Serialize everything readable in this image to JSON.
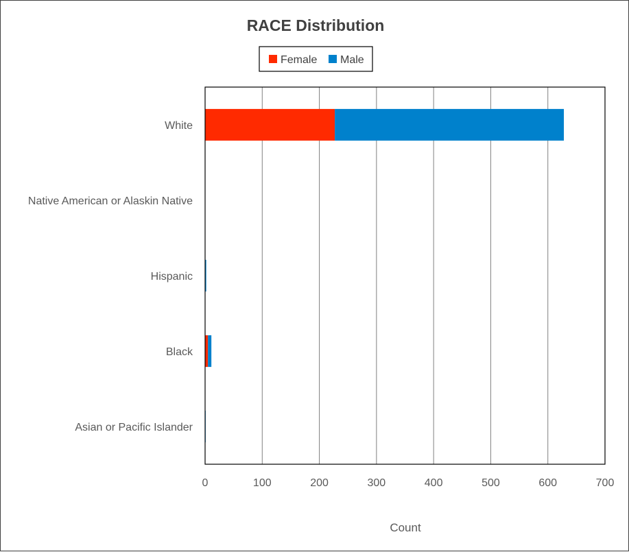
{
  "chart_data": {
    "type": "bar",
    "orientation": "horizontal",
    "stacked": true,
    "title": "RACE Distribution",
    "xlabel": "Count",
    "ylabel": "",
    "categories": [
      "White",
      "Native American or Alaskin Native",
      "Hispanic",
      "Black",
      "Asian or Pacific Islander"
    ],
    "series": [
      {
        "name": "Female",
        "color": "#ff2a00",
        "values": [
          227,
          0,
          0,
          5,
          0
        ]
      },
      {
        "name": "Male",
        "color": "#0081cc",
        "values": [
          401,
          0,
          2,
          6,
          1
        ]
      }
    ],
    "xlim": [
      0,
      700
    ],
    "xticks": [
      0,
      100,
      200,
      300,
      400,
      500,
      600,
      700
    ],
    "grid": true,
    "legend": "top"
  }
}
